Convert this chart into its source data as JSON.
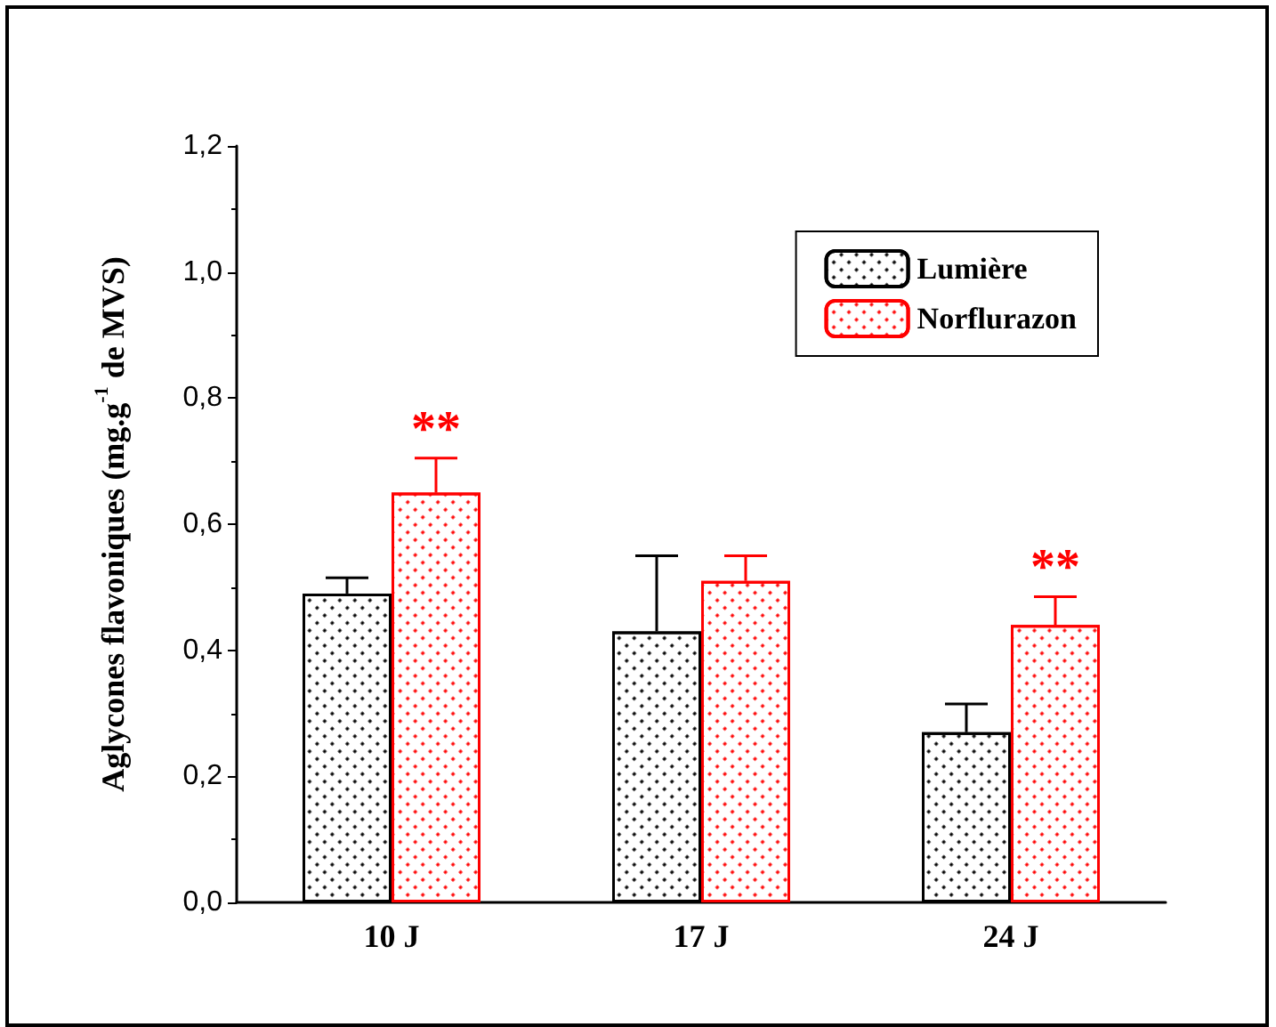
{
  "chart_data": {
    "type": "bar",
    "ylabel": "Aglycones flavoniques (mg.g$^{-1}$ de MVS)",
    "categories": [
      "10 J",
      "17 J",
      "24 J"
    ],
    "series": [
      {
        "name": "Lumière",
        "color": "#000000",
        "values": [
          0.49,
          0.43,
          0.27
        ],
        "errors": [
          [
            0.49,
            0.515
          ],
          [
            0.43,
            0.55
          ],
          [
            0.27,
            0.315
          ]
        ]
      },
      {
        "name": "Norflurazon",
        "color": "#ff0000",
        "values": [
          0.65,
          0.51,
          0.44
        ],
        "errors": [
          [
            0.65,
            0.705
          ],
          [
            0.51,
            0.55
          ],
          [
            0.44,
            0.485
          ]
        ]
      }
    ],
    "ylim": [
      0,
      1.2
    ],
    "yticks": [
      {
        "value": 0,
        "label": "0,0"
      },
      {
        "value": 0.2,
        "label": "0,2"
      },
      {
        "value": 0.4,
        "label": "0,4"
      },
      {
        "value": 0.6,
        "label": "0,6"
      },
      {
        "value": 0.8,
        "label": "0,8"
      },
      {
        "value": 1.0,
        "label": "1,0"
      },
      {
        "value": 1.2,
        "label": "1,2"
      }
    ],
    "annotations": [
      {
        "text": "**",
        "x": "10 J",
        "y": 0.65
      },
      {
        "text": "**",
        "x": "24 J",
        "y": 0.44
      }
    ],
    "legend": "top right",
    "grid": false
  }
}
